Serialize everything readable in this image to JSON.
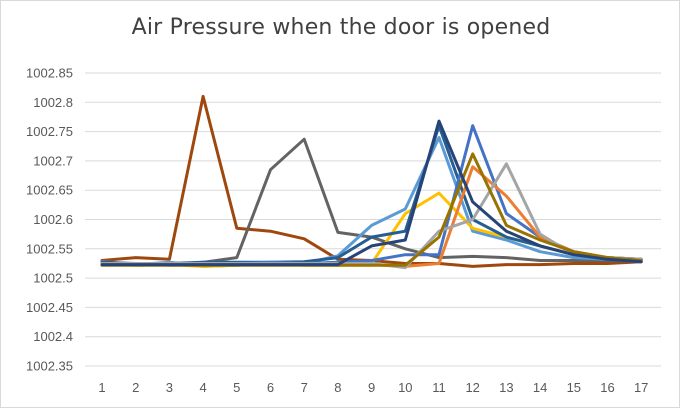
{
  "chart_data": {
    "type": "line",
    "title": "Air Pressure when the door is opened",
    "xlabel": "",
    "ylabel": "",
    "categories": [
      "1",
      "2",
      "3",
      "4",
      "5",
      "6",
      "7",
      "8",
      "9",
      "10",
      "11",
      "12",
      "13",
      "14",
      "15",
      "16",
      "17"
    ],
    "ylim": [
      1002.35,
      1002.85
    ],
    "yticks": [
      "1002.35",
      "1002.4",
      "1002.45",
      "1002.5",
      "1002.55",
      "1002.6",
      "1002.65",
      "1002.7",
      "1002.75",
      "1002.8",
      "1002.85"
    ],
    "grid": true,
    "legend": "none",
    "series": [
      {
        "color": "#9E480E",
        "values": [
          1002.53,
          1002.535,
          1002.532,
          1002.81,
          1002.585,
          1002.58,
          1002.567,
          1002.532,
          1002.53,
          1002.525,
          1002.525,
          1002.52,
          1002.523,
          1002.523,
          1002.525,
          1002.525,
          1002.528
        ]
      },
      {
        "color": "#636363",
        "values": [
          1002.525,
          1002.525,
          1002.523,
          1002.527,
          1002.535,
          1002.685,
          1002.737,
          1002.578,
          1002.57,
          1002.55,
          1002.535,
          1002.537,
          1002.535,
          1002.53,
          1002.53,
          1002.53,
          1002.528
        ]
      },
      {
        "color": "#5B9BD5",
        "values": [
          1002.528,
          1002.523,
          1002.527,
          1002.52,
          1002.522,
          1002.525,
          1002.525,
          1002.538,
          1002.59,
          1002.618,
          1002.74,
          1002.58,
          1002.565,
          1002.545,
          1002.535,
          1002.532,
          1002.53
        ]
      },
      {
        "color": "#FFC000",
        "values": [
          1002.525,
          1002.522,
          1002.523,
          1002.52,
          1002.522,
          1002.525,
          1002.522,
          1002.522,
          1002.525,
          1002.61,
          1002.645,
          1002.585,
          1002.57,
          1002.555,
          1002.54,
          1002.535,
          1002.532
        ]
      },
      {
        "color": "#255E91",
        "values": [
          1002.527,
          1002.525,
          1002.525,
          1002.527,
          1002.527,
          1002.527,
          1002.528,
          1002.535,
          1002.57,
          1002.58,
          1002.76,
          1002.6,
          1002.57,
          1002.555,
          1002.54,
          1002.535,
          1002.532
        ]
      },
      {
        "color": "#4472C4",
        "values": [
          1002.525,
          1002.523,
          1002.523,
          1002.523,
          1002.525,
          1002.527,
          1002.525,
          1002.527,
          1002.53,
          1002.54,
          1002.54,
          1002.76,
          1002.61,
          1002.57,
          1002.545,
          1002.535,
          1002.532
        ]
      },
      {
        "color": "#ED7D31",
        "values": [
          1002.525,
          1002.525,
          1002.522,
          1002.523,
          1002.523,
          1002.525,
          1002.525,
          1002.523,
          1002.523,
          1002.52,
          1002.525,
          1002.69,
          1002.64,
          1002.57,
          1002.545,
          1002.535,
          1002.53
        ]
      },
      {
        "color": "#A5A5A5",
        "values": [
          1002.525,
          1002.525,
          1002.525,
          1002.525,
          1002.525,
          1002.525,
          1002.525,
          1002.525,
          1002.525,
          1002.518,
          1002.58,
          1002.6,
          1002.695,
          1002.575,
          1002.54,
          1002.535,
          1002.532
        ]
      },
      {
        "color": "#997300",
        "values": [
          1002.522,
          1002.522,
          1002.522,
          1002.522,
          1002.522,
          1002.522,
          1002.522,
          1002.522,
          1002.522,
          1002.522,
          1002.57,
          1002.712,
          1002.59,
          1002.565,
          1002.545,
          1002.535,
          1002.53
        ]
      },
      {
        "color": "#264478",
        "values": [
          1002.523,
          1002.523,
          1002.523,
          1002.523,
          1002.523,
          1002.523,
          1002.523,
          1002.523,
          1002.555,
          1002.565,
          1002.768,
          1002.63,
          1002.58,
          1002.555,
          1002.54,
          1002.532,
          1002.528
        ]
      }
    ]
  }
}
